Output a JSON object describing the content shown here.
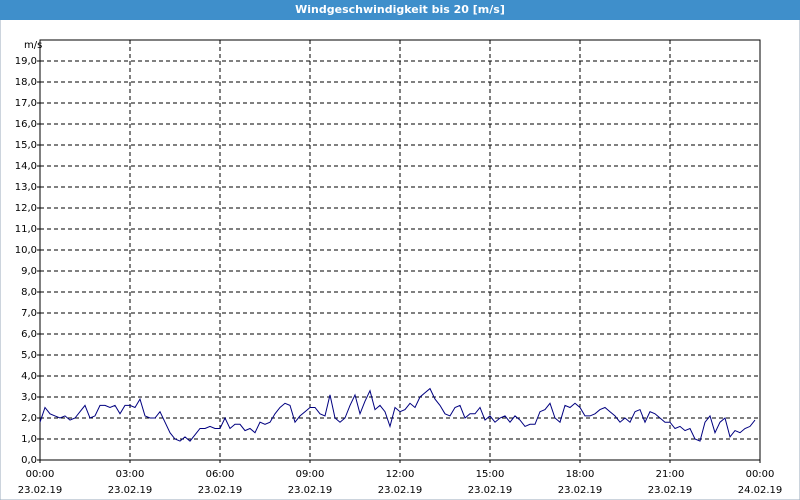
{
  "chart_data": {
    "type": "line",
    "title": "Windgeschwindigkeit bis 20 [m/s]",
    "y_unit": "m/s",
    "color": "#000080",
    "grid": true,
    "xlim": [
      0,
      1440
    ],
    "xticks": [
      {
        "value": 0,
        "label": "00:00"
      },
      {
        "value": 180,
        "label": "03:00"
      },
      {
        "value": 360,
        "label": "06:00"
      },
      {
        "value": 540,
        "label": "09:00"
      },
      {
        "value": 720,
        "label": "12:00"
      },
      {
        "value": 900,
        "label": "15:00"
      },
      {
        "value": 1080,
        "label": "18:00"
      },
      {
        "value": 1260,
        "label": "21:00"
      },
      {
        "value": 1440,
        "label": "00:00"
      }
    ],
    "xtick_dates": [
      "23.02.19",
      "23.02.19",
      "23.02.19",
      "23.02.19",
      "23.02.19",
      "23.02.19",
      "23.02.19",
      "23.02.19",
      "24.02.19"
    ],
    "ylim": [
      0,
      20
    ],
    "yticks": [
      {
        "value": 0,
        "label": "0,0"
      },
      {
        "value": 1,
        "label": "1,0"
      },
      {
        "value": 2,
        "label": "2,0"
      },
      {
        "value": 3,
        "label": "3,0"
      },
      {
        "value": 4,
        "label": "4,0"
      },
      {
        "value": 5,
        "label": "5,0"
      },
      {
        "value": 6,
        "label": "6,0"
      },
      {
        "value": 7,
        "label": "7,0"
      },
      {
        "value": 8,
        "label": "8,0"
      },
      {
        "value": 9,
        "label": "9,0"
      },
      {
        "value": 10,
        "label": "10,0"
      },
      {
        "value": 11,
        "label": "11,0"
      },
      {
        "value": 12,
        "label": "12,0"
      },
      {
        "value": 13,
        "label": "13,0"
      },
      {
        "value": 14,
        "label": "14,0"
      },
      {
        "value": 15,
        "label": "15,0"
      },
      {
        "value": 16,
        "label": "16,0"
      },
      {
        "value": 17,
        "label": "17,0"
      },
      {
        "value": 18,
        "label": "18,0"
      },
      {
        "value": 19,
        "label": "19,0"
      }
    ],
    "x": [
      0,
      10,
      20,
      30,
      40,
      50,
      60,
      70,
      80,
      90,
      100,
      110,
      120,
      130,
      140,
      150,
      160,
      170,
      180,
      190,
      200,
      210,
      220,
      230,
      240,
      250,
      260,
      270,
      280,
      290,
      300,
      310,
      320,
      330,
      340,
      350,
      360,
      370,
      380,
      390,
      400,
      410,
      420,
      430,
      440,
      450,
      460,
      470,
      480,
      490,
      500,
      510,
      520,
      530,
      540,
      550,
      560,
      570,
      580,
      590,
      600,
      610,
      620,
      630,
      640,
      650,
      660,
      670,
      680,
      690,
      700,
      710,
      720,
      730,
      740,
      750,
      760,
      770,
      780,
      790,
      800,
      810,
      820,
      830,
      840,
      850,
      860,
      870,
      880,
      890,
      900,
      910,
      920,
      930,
      940,
      950,
      960,
      970,
      980,
      990,
      1000,
      1010,
      1020,
      1030,
      1040,
      1050,
      1060,
      1070,
      1080,
      1090,
      1100,
      1110,
      1120,
      1130,
      1140,
      1150,
      1160,
      1170,
      1180,
      1190,
      1200,
      1210,
      1220,
      1230,
      1240,
      1250,
      1260,
      1270,
      1280,
      1290,
      1300,
      1310,
      1320,
      1330,
      1340,
      1350,
      1360,
      1370,
      1380,
      1390,
      1400,
      1410,
      1420,
      1430
    ],
    "values": [
      1.8,
      2.5,
      2.2,
      2.1,
      2.0,
      2.1,
      1.9,
      2.0,
      2.3,
      2.6,
      2.0,
      2.1,
      2.6,
      2.6,
      2.5,
      2.6,
      2.2,
      2.6,
      2.6,
      2.5,
      2.9,
      2.1,
      2.0,
      2.0,
      2.3,
      1.8,
      1.3,
      1.0,
      0.9,
      1.1,
      0.9,
      1.2,
      1.5,
      1.5,
      1.6,
      1.5,
      1.5,
      2.0,
      1.5,
      1.7,
      1.7,
      1.4,
      1.5,
      1.3,
      1.8,
      1.7,
      1.8,
      2.2,
      2.5,
      2.7,
      2.6,
      1.8,
      2.1,
      2.3,
      2.5,
      2.5,
      2.2,
      2.1,
      3.1,
      2.0,
      1.8,
      2.0,
      2.6,
      3.1,
      2.2,
      2.8,
      3.3,
      2.4,
      2.6,
      2.3,
      1.6,
      2.5,
      2.3,
      2.4,
      2.7,
      2.5,
      3.0,
      3.2,
      3.4,
      2.9,
      2.6,
      2.2,
      2.1,
      2.5,
      2.6,
      2.0,
      2.2,
      2.2,
      2.5,
      1.9,
      2.1,
      1.8,
      2.0,
      2.1,
      1.8,
      2.1,
      1.9,
      1.6,
      1.7,
      1.7,
      2.3,
      2.4,
      2.7,
      2.0,
      1.8,
      2.6,
      2.5,
      2.7,
      2.5,
      2.1,
      2.1,
      2.2,
      2.4,
      2.5,
      2.3,
      2.1,
      1.8,
      2.0,
      1.8,
      2.3,
      2.4,
      1.8,
      2.3,
      2.2,
      2.0,
      1.8,
      1.8,
      1.5,
      1.6,
      1.4,
      1.5,
      1.0,
      0.9,
      1.8,
      2.1,
      1.3,
      1.8,
      2.0,
      1.1,
      1.4,
      1.3,
      1.5,
      1.6,
      1.9
    ]
  }
}
